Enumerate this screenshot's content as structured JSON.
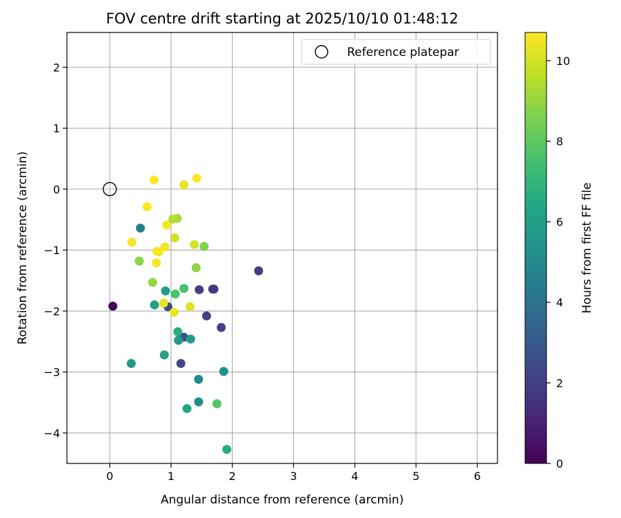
{
  "chart_data": {
    "type": "scatter",
    "title": "FOV centre drift starting at 2025/10/10 01:48:12",
    "xlabel": "Angular distance from reference (arcmin)",
    "ylabel": "Rotation from reference (arcmin)",
    "xlim": [
      -0.7,
      6.33
    ],
    "ylim": [
      -4.5,
      2.57
    ],
    "xticks": [
      0,
      1,
      2,
      3,
      4,
      5,
      6
    ],
    "yticks": [
      -4,
      -3,
      -2,
      -1,
      0,
      1,
      2
    ],
    "grid": true,
    "legend": {
      "position": "top-right",
      "entries": [
        "Reference platepar"
      ]
    },
    "reference": {
      "x": 0,
      "y": 0,
      "label": "Reference platepar"
    },
    "colorbar": {
      "label": "Hours from first FF file",
      "colormap": "viridis",
      "range": [
        0,
        10.7
      ],
      "ticks": [
        0,
        2,
        4,
        6,
        8,
        10
      ]
    },
    "points": [
      {
        "x": 0.05,
        "y": -1.92,
        "hours": 0.1
      },
      {
        "x": 2.43,
        "y": -1.34,
        "hours": 1.9
      },
      {
        "x": 1.46,
        "y": -1.65,
        "hours": 1.9
      },
      {
        "x": 1.68,
        "y": -1.64,
        "hours": 1.9
      },
      {
        "x": 1.7,
        "y": -1.64,
        "hours": 1.8
      },
      {
        "x": 1.58,
        "y": -2.08,
        "hours": 2.0
      },
      {
        "x": 1.82,
        "y": -2.27,
        "hours": 2.1
      },
      {
        "x": 1.16,
        "y": -2.86,
        "hours": 2.2
      },
      {
        "x": 0.95,
        "y": -1.93,
        "hours": 2.4
      },
      {
        "x": 1.21,
        "y": -2.43,
        "hours": 2.6
      },
      {
        "x": 0.5,
        "y": -0.64,
        "hours": 4.6
      },
      {
        "x": 1.45,
        "y": -3.12,
        "hours": 5.0
      },
      {
        "x": 1.45,
        "y": -3.49,
        "hours": 5.2
      },
      {
        "x": 1.86,
        "y": -2.99,
        "hours": 5.4
      },
      {
        "x": 0.35,
        "y": -2.86,
        "hours": 5.7
      },
      {
        "x": 1.12,
        "y": -2.48,
        "hours": 5.8
      },
      {
        "x": 1.32,
        "y": -2.46,
        "hours": 5.9
      },
      {
        "x": 0.73,
        "y": -1.9,
        "hours": 6.0
      },
      {
        "x": 0.91,
        "y": -1.67,
        "hours": 6.0
      },
      {
        "x": 0.89,
        "y": -2.72,
        "hours": 6.1
      },
      {
        "x": 1.26,
        "y": -3.6,
        "hours": 6.3
      },
      {
        "x": 1.91,
        "y": -4.27,
        "hours": 6.6
      },
      {
        "x": 1.11,
        "y": -2.34,
        "hours": 6.7
      },
      {
        "x": 1.21,
        "y": -1.63,
        "hours": 7.5
      },
      {
        "x": 1.07,
        "y": -1.72,
        "hours": 7.6
      },
      {
        "x": 1.75,
        "y": -3.52,
        "hours": 7.8
      },
      {
        "x": 1.54,
        "y": -0.94,
        "hours": 8.6
      },
      {
        "x": 0.48,
        "y": -1.18,
        "hours": 8.8
      },
      {
        "x": 1.41,
        "y": -1.29,
        "hours": 8.9
      },
      {
        "x": 0.7,
        "y": -1.53,
        "hours": 9.0
      },
      {
        "x": 1.1,
        "y": -0.48,
        "hours": 9.3
      },
      {
        "x": 1.03,
        "y": -0.49,
        "hours": 9.5
      },
      {
        "x": 1.06,
        "y": -0.8,
        "hours": 9.9
      },
      {
        "x": 1.38,
        "y": -0.91,
        "hours": 10.0
      },
      {
        "x": 1.31,
        "y": -1.93,
        "hours": 10.2
      },
      {
        "x": 1.21,
        "y": 0.07,
        "hours": 10.3
      },
      {
        "x": 0.88,
        "y": -1.87,
        "hours": 10.3
      },
      {
        "x": 1.05,
        "y": -2.02,
        "hours": 10.4
      },
      {
        "x": 0.9,
        "y": -0.95,
        "hours": 10.5
      },
      {
        "x": 0.93,
        "y": -0.59,
        "hours": 10.5
      },
      {
        "x": 0.36,
        "y": -0.87,
        "hours": 10.6
      },
      {
        "x": 0.77,
        "y": -1.02,
        "hours": 10.6
      },
      {
        "x": 0.8,
        "y": -1.03,
        "hours": 10.6
      },
      {
        "x": 0.76,
        "y": -1.21,
        "hours": 10.6
      },
      {
        "x": 1.42,
        "y": 0.18,
        "hours": 10.7
      },
      {
        "x": 0.72,
        "y": 0.15,
        "hours": 10.7
      },
      {
        "x": 0.61,
        "y": -0.29,
        "hours": 10.7
      }
    ]
  }
}
